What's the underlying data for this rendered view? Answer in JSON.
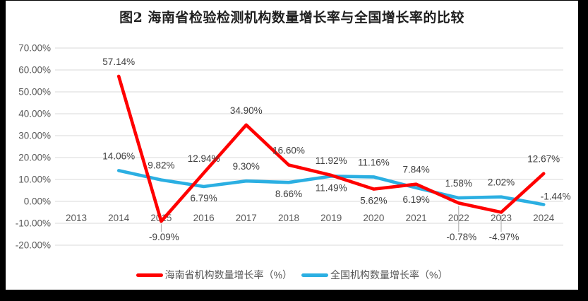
{
  "page": {
    "background": "#ffffff",
    "frame_color": "#000000"
  },
  "chart_data": {
    "type": "line",
    "title": "图2 海南省检验检测机构数量增长率与全国增长率的比较",
    "categories": [
      "2013",
      "2014",
      "2015",
      "2016",
      "2017",
      "2018",
      "2019",
      "2020",
      "2021",
      "2022",
      "2023",
      "2024"
    ],
    "series": [
      {
        "key": "hainan",
        "name": "海南省机构数量增长率（%）",
        "color": "#ff0000",
        "values": [
          null,
          57.14,
          -9.09,
          12.94,
          34.9,
          16.6,
          11.92,
          5.62,
          7.84,
          -0.78,
          -4.97,
          12.67
        ],
        "label_pos": [
          null,
          "above",
          "leader",
          "above",
          "above",
          "above",
          "above",
          "below",
          "above",
          "leader",
          "leader",
          "above"
        ]
      },
      {
        "key": "national",
        "name": "全国机构数量增长率（%）",
        "color": "#2bafe2",
        "values": [
          null,
          14.06,
          9.82,
          6.79,
          9.3,
          8.66,
          11.49,
          11.16,
          6.19,
          1.58,
          2.02,
          -1.44
        ],
        "label_pos": [
          null,
          "above",
          "above",
          "below",
          "above",
          "below",
          "below",
          "above",
          "below",
          "above",
          "above",
          "above_right"
        ]
      }
    ],
    "ylim": [
      -20,
      70
    ],
    "ytick_step": 10,
    "ytick_labels": [
      "70.00%",
      "60.00%",
      "50.00%",
      "40.00%",
      "30.00%",
      "20.00%",
      "10.00%",
      "0.00%",
      "-10.00%",
      "-20.00%"
    ],
    "grid": true,
    "legend_position": "bottom",
    "label_format": "percent_2dp",
    "colors": {
      "gridline": "#d9d9d9",
      "axis_text": "#595959",
      "data_label": "#3f3f3f",
      "leader_line": "#a6a6a6"
    }
  }
}
